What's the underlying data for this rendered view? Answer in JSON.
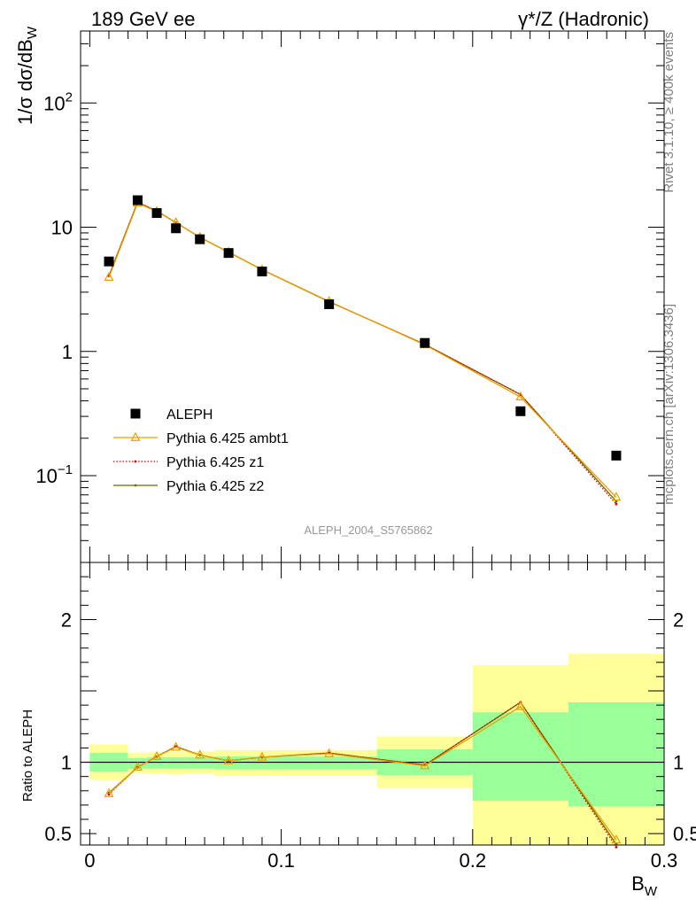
{
  "header": {
    "left_title": "189 GeV ee",
    "right_title": "γ*/Z (Hadronic)"
  },
  "side_labels": {
    "rivet": "Rivet 3.1.10, ≥ 400k events",
    "mcplots": "mcplots.cern.ch [arXiv:1306.3436]"
  },
  "analysis_label": "ALEPH_2004_S5765862",
  "colors": {
    "data": "#000000",
    "ambt1": "#e8a000",
    "z1": "#e00000",
    "z2": "#6b6b00",
    "band_inner": "#99ff99",
    "band_outer": "#ffff99",
    "analysis_label": "#999999",
    "side_label": "#808080"
  },
  "chart_data": [
    {
      "type": "scatter",
      "panel": "main",
      "ylabel": "1/σ dσ/dB_W",
      "yscale": "log",
      "ylim": [
        0.02,
        380
      ],
      "xlim": [
        -0.0048,
        0.3
      ],
      "y_ticks": [
        {
          "value": 0.1,
          "base": "10",
          "exp": "−1"
        },
        {
          "value": 1,
          "text": "1"
        },
        {
          "value": 10,
          "text": "10"
        },
        {
          "value": 100,
          "base": "10",
          "exp": "2"
        }
      ],
      "legend": {
        "position": "lower-left",
        "entries": [
          "ALEPH",
          "Pythia 6.425 ambt1",
          "Pythia 6.425 z1",
          "Pythia 6.425 z2"
        ]
      },
      "x": [
        0.01,
        0.025,
        0.035,
        0.045,
        0.0575,
        0.0725,
        0.09,
        0.125,
        0.175,
        0.225,
        0.275
      ],
      "series": [
        {
          "name": "ALEPH",
          "style": "marker-square",
          "values": [
            5.3,
            16.5,
            13.0,
            9.8,
            8.0,
            6.2,
            4.4,
            2.4,
            1.17,
            0.33,
            0.145
          ]
        },
        {
          "name": "Pythia 6.425 ambt1",
          "style": "line-triangle",
          "values": [
            3.95,
            15.6,
            13.4,
            10.9,
            8.3,
            6.3,
            4.55,
            2.53,
            1.13,
            0.43,
            0.067
          ]
        },
        {
          "name": "Pythia 6.425 z1",
          "style": "dotted-dot",
          "values": [
            4.05,
            15.9,
            13.5,
            10.9,
            8.3,
            6.3,
            4.55,
            2.52,
            1.14,
            0.45,
            0.059
          ]
        },
        {
          "name": "Pythia 6.425 z2",
          "style": "line-dot",
          "values": [
            4.05,
            15.9,
            13.5,
            10.9,
            8.3,
            6.3,
            4.55,
            2.52,
            1.14,
            0.45,
            0.062
          ]
        }
      ]
    },
    {
      "type": "line",
      "panel": "ratio",
      "ylabel": "Ratio to ALEPH",
      "xlabel": "B_W",
      "ylim": [
        0.42,
        2.4
      ],
      "xlim": [
        -0.0048,
        0.3
      ],
      "x_ticks": [
        "0",
        "0.1",
        "0.2",
        "0.3"
      ],
      "y_ticks": [
        "0.5",
        "1",
        "2"
      ],
      "bands": [
        {
          "x0": 0.0,
          "x1": 0.02,
          "inner": [
            0.935,
            1.065
          ],
          "outer": [
            0.875,
            1.125
          ]
        },
        {
          "x0": 0.02,
          "x1": 0.03,
          "inner": [
            0.955,
            1.03
          ],
          "outer": [
            0.925,
            1.065
          ]
        },
        {
          "x0": 0.03,
          "x1": 0.04,
          "inner": [
            0.955,
            1.035
          ],
          "outer": [
            0.92,
            1.07
          ]
        },
        {
          "x0": 0.04,
          "x1": 0.05,
          "inner": [
            0.955,
            1.035
          ],
          "outer": [
            0.915,
            1.075
          ]
        },
        {
          "x0": 0.05,
          "x1": 0.065,
          "inner": [
            0.955,
            1.035
          ],
          "outer": [
            0.92,
            1.075
          ]
        },
        {
          "x0": 0.065,
          "x1": 0.08,
          "inner": [
            0.95,
            1.04
          ],
          "outer": [
            0.905,
            1.085
          ]
        },
        {
          "x0": 0.08,
          "x1": 0.1,
          "inner": [
            0.95,
            1.04
          ],
          "outer": [
            0.905,
            1.085
          ]
        },
        {
          "x0": 0.1,
          "x1": 0.15,
          "inner": [
            0.95,
            1.04
          ],
          "outer": [
            0.905,
            1.085
          ]
        },
        {
          "x0": 0.15,
          "x1": 0.2,
          "inner": [
            0.91,
            1.09
          ],
          "outer": [
            0.82,
            1.18
          ]
        },
        {
          "x0": 0.2,
          "x1": 0.25,
          "inner": [
            0.73,
            1.35
          ],
          "outer": [
            0.42,
            1.68
          ]
        },
        {
          "x0": 0.25,
          "x1": 0.3,
          "inner": [
            0.69,
            1.42
          ],
          "outer": [
            0.42,
            1.76
          ]
        }
      ],
      "reference": 1.0,
      "x": [
        0.01,
        0.025,
        0.035,
        0.045,
        0.0575,
        0.0725,
        0.09,
        0.125,
        0.175,
        0.225,
        0.275
      ],
      "series": [
        {
          "name": "Pythia 6.425 ambt1",
          "style": "line-triangle",
          "values": [
            0.78,
            0.965,
            1.04,
            1.105,
            1.05,
            1.01,
            1.035,
            1.06,
            0.975,
            1.39,
            0.455
          ]
        },
        {
          "name": "Pythia 6.425 z1",
          "style": "dotted-dot",
          "values": [
            0.775,
            0.965,
            1.04,
            1.11,
            1.05,
            1.01,
            1.035,
            1.065,
            0.98,
            1.42,
            0.405
          ]
        },
        {
          "name": "Pythia 6.425 z2",
          "style": "line-dot",
          "values": [
            0.785,
            0.965,
            1.04,
            1.11,
            1.05,
            1.01,
            1.035,
            1.065,
            0.98,
            1.42,
            0.425
          ]
        }
      ]
    }
  ]
}
